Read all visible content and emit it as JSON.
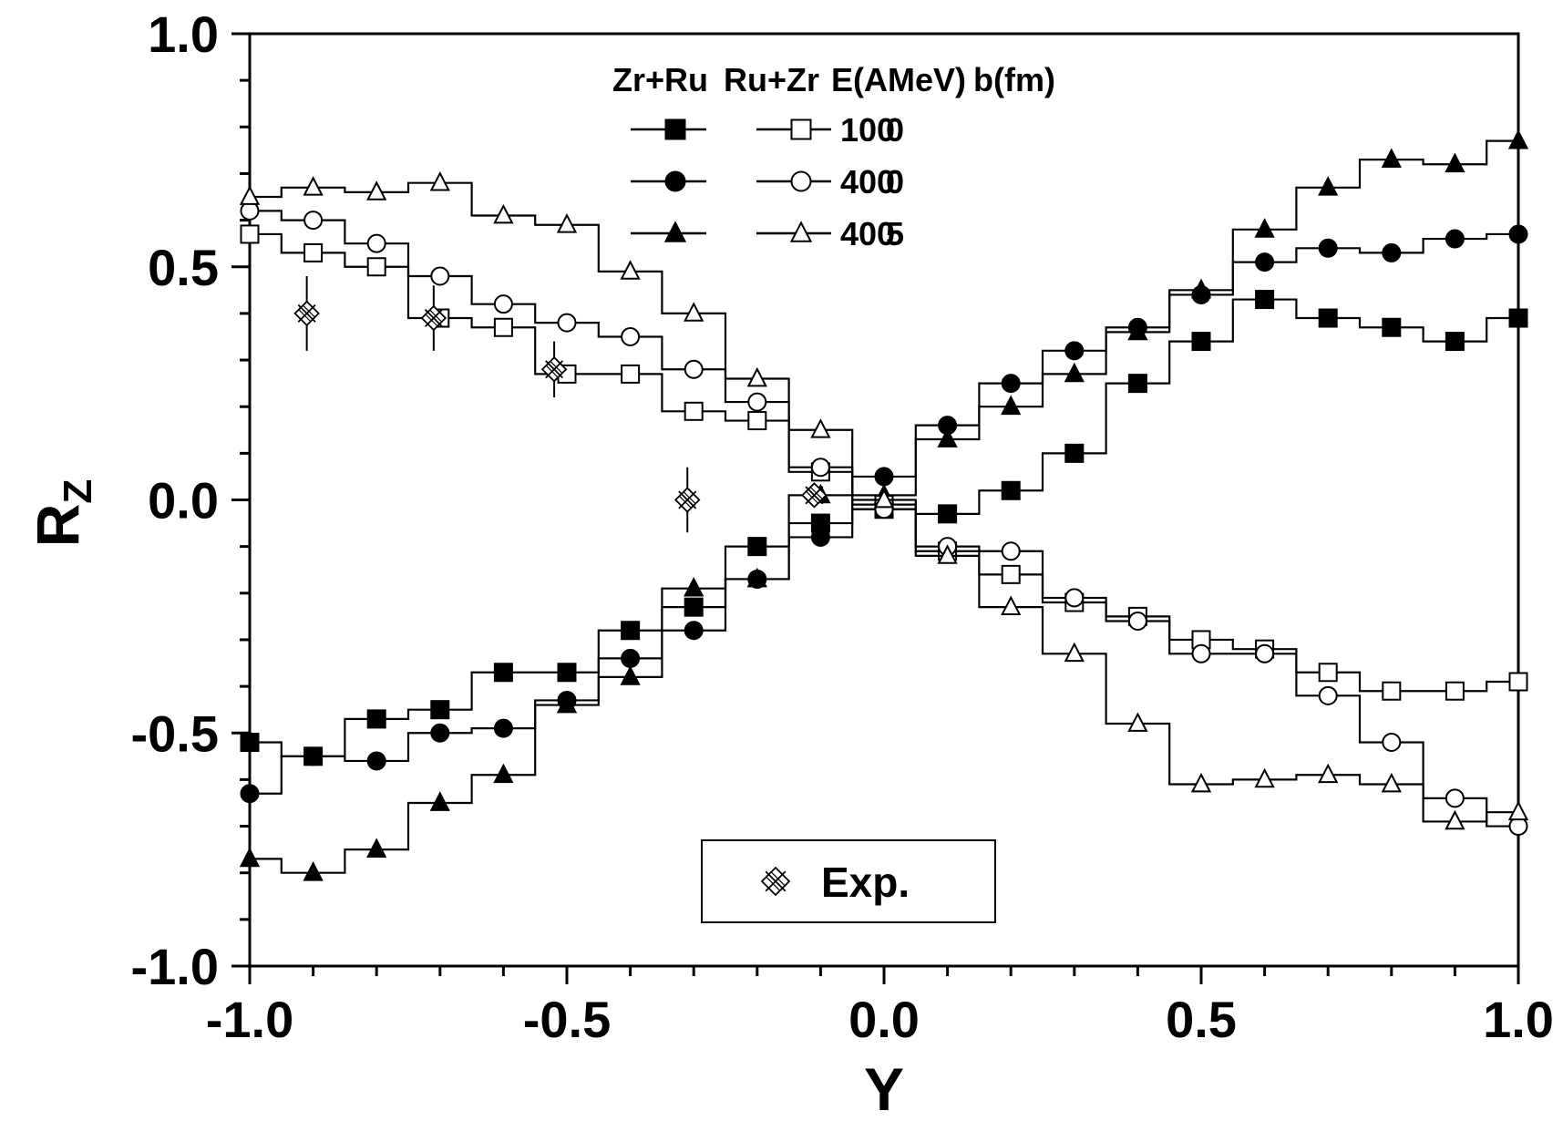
{
  "chart_data": {
    "type": "line",
    "xlabel": "Y",
    "ylabel": "R",
    "ylabel_sub": "Z",
    "xlim": [
      -1.0,
      1.0
    ],
    "ylim": [
      -1.0,
      1.0
    ],
    "xticks": [
      "-1.0",
      "-0.5",
      "0.0",
      "0.5",
      "1.0"
    ],
    "yticks": [
      "-1.0",
      "-0.5",
      "0.0",
      "0.5",
      "1.0"
    ],
    "grid": false,
    "legend": {
      "placement": "top-center",
      "header": [
        "Zr+Ru",
        "Ru+Zr",
        "E(AMeV)",
        "b(fm)"
      ],
      "rows": [
        {
          "energy": "100",
          "b": "0"
        },
        {
          "energy": "400",
          "b": "0"
        },
        {
          "energy": "400",
          "b": "5"
        }
      ]
    },
    "exp_legend": "Exp.",
    "x": [
      -1.0,
      -0.9,
      -0.8,
      -0.7,
      -0.6,
      -0.5,
      -0.4,
      -0.3,
      -0.2,
      -0.1,
      0.0,
      0.1,
      0.2,
      0.3,
      0.4,
      0.5,
      0.6,
      0.7,
      0.8,
      0.9,
      1.0
    ],
    "series": [
      {
        "system": "Zr+Ru",
        "energy": "100",
        "b": "0",
        "marker": "square",
        "filled": true,
        "values": [
          -0.52,
          -0.55,
          -0.47,
          -0.45,
          -0.37,
          -0.37,
          -0.28,
          -0.23,
          -0.1,
          -0.05,
          -0.02,
          -0.03,
          0.02,
          0.1,
          0.25,
          0.34,
          0.43,
          0.39,
          0.37,
          0.34,
          0.39
        ]
      },
      {
        "system": "Zr+Ru",
        "energy": "400",
        "b": "0",
        "marker": "circle",
        "filled": true,
        "values": [
          -0.63,
          -0.55,
          -0.56,
          -0.5,
          -0.49,
          -0.43,
          -0.34,
          -0.28,
          -0.17,
          -0.08,
          0.05,
          0.16,
          0.25,
          0.32,
          0.37,
          0.44,
          0.51,
          0.54,
          0.53,
          0.56,
          0.57
        ]
      },
      {
        "system": "Zr+Ru",
        "energy": "400",
        "b": "5",
        "marker": "triangle",
        "filled": true,
        "values": [
          -0.77,
          -0.8,
          -0.75,
          -0.65,
          -0.59,
          -0.44,
          -0.38,
          -0.19,
          -0.17,
          0.01,
          0.01,
          0.13,
          0.2,
          0.27,
          0.36,
          0.45,
          0.58,
          0.67,
          0.73,
          0.72,
          0.77
        ]
      },
      {
        "system": "Ru+Zr",
        "energy": "100",
        "b": "0",
        "marker": "square",
        "filled": false,
        "values": [
          0.57,
          0.53,
          0.5,
          0.39,
          0.37,
          0.27,
          0.27,
          0.19,
          0.17,
          0.06,
          -0.01,
          -0.11,
          -0.16,
          -0.22,
          -0.25,
          -0.3,
          -0.32,
          -0.37,
          -0.41,
          -0.41,
          -0.39
        ]
      },
      {
        "system": "Ru+Zr",
        "energy": "400",
        "b": "0",
        "marker": "circle",
        "filled": false,
        "values": [
          0.62,
          0.6,
          0.55,
          0.48,
          0.42,
          0.38,
          0.35,
          0.28,
          0.21,
          0.07,
          -0.02,
          -0.1,
          -0.11,
          -0.21,
          -0.26,
          -0.33,
          -0.33,
          -0.42,
          -0.52,
          -0.64,
          -0.7
        ]
      },
      {
        "system": "Ru+Zr",
        "energy": "400",
        "b": "5",
        "marker": "triangle",
        "filled": false,
        "values": [
          0.65,
          0.67,
          0.66,
          0.68,
          0.61,
          0.59,
          0.49,
          0.4,
          0.26,
          0.15,
          0.0,
          -0.12,
          -0.23,
          -0.33,
          -0.48,
          -0.61,
          -0.6,
          -0.59,
          -0.61,
          -0.69,
          -0.67
        ]
      }
    ],
    "experiment": {
      "marker": "crossed-diamond",
      "points": [
        {
          "x": -0.91,
          "y": 0.4,
          "err": 0.08
        },
        {
          "x": -0.71,
          "y": 0.39,
          "err": 0.07
        },
        {
          "x": -0.52,
          "y": 0.28,
          "err": 0.06
        },
        {
          "x": -0.31,
          "y": 0.0,
          "err": 0.07
        },
        {
          "x": -0.11,
          "y": 0.01,
          "err": 0.02
        }
      ]
    }
  }
}
